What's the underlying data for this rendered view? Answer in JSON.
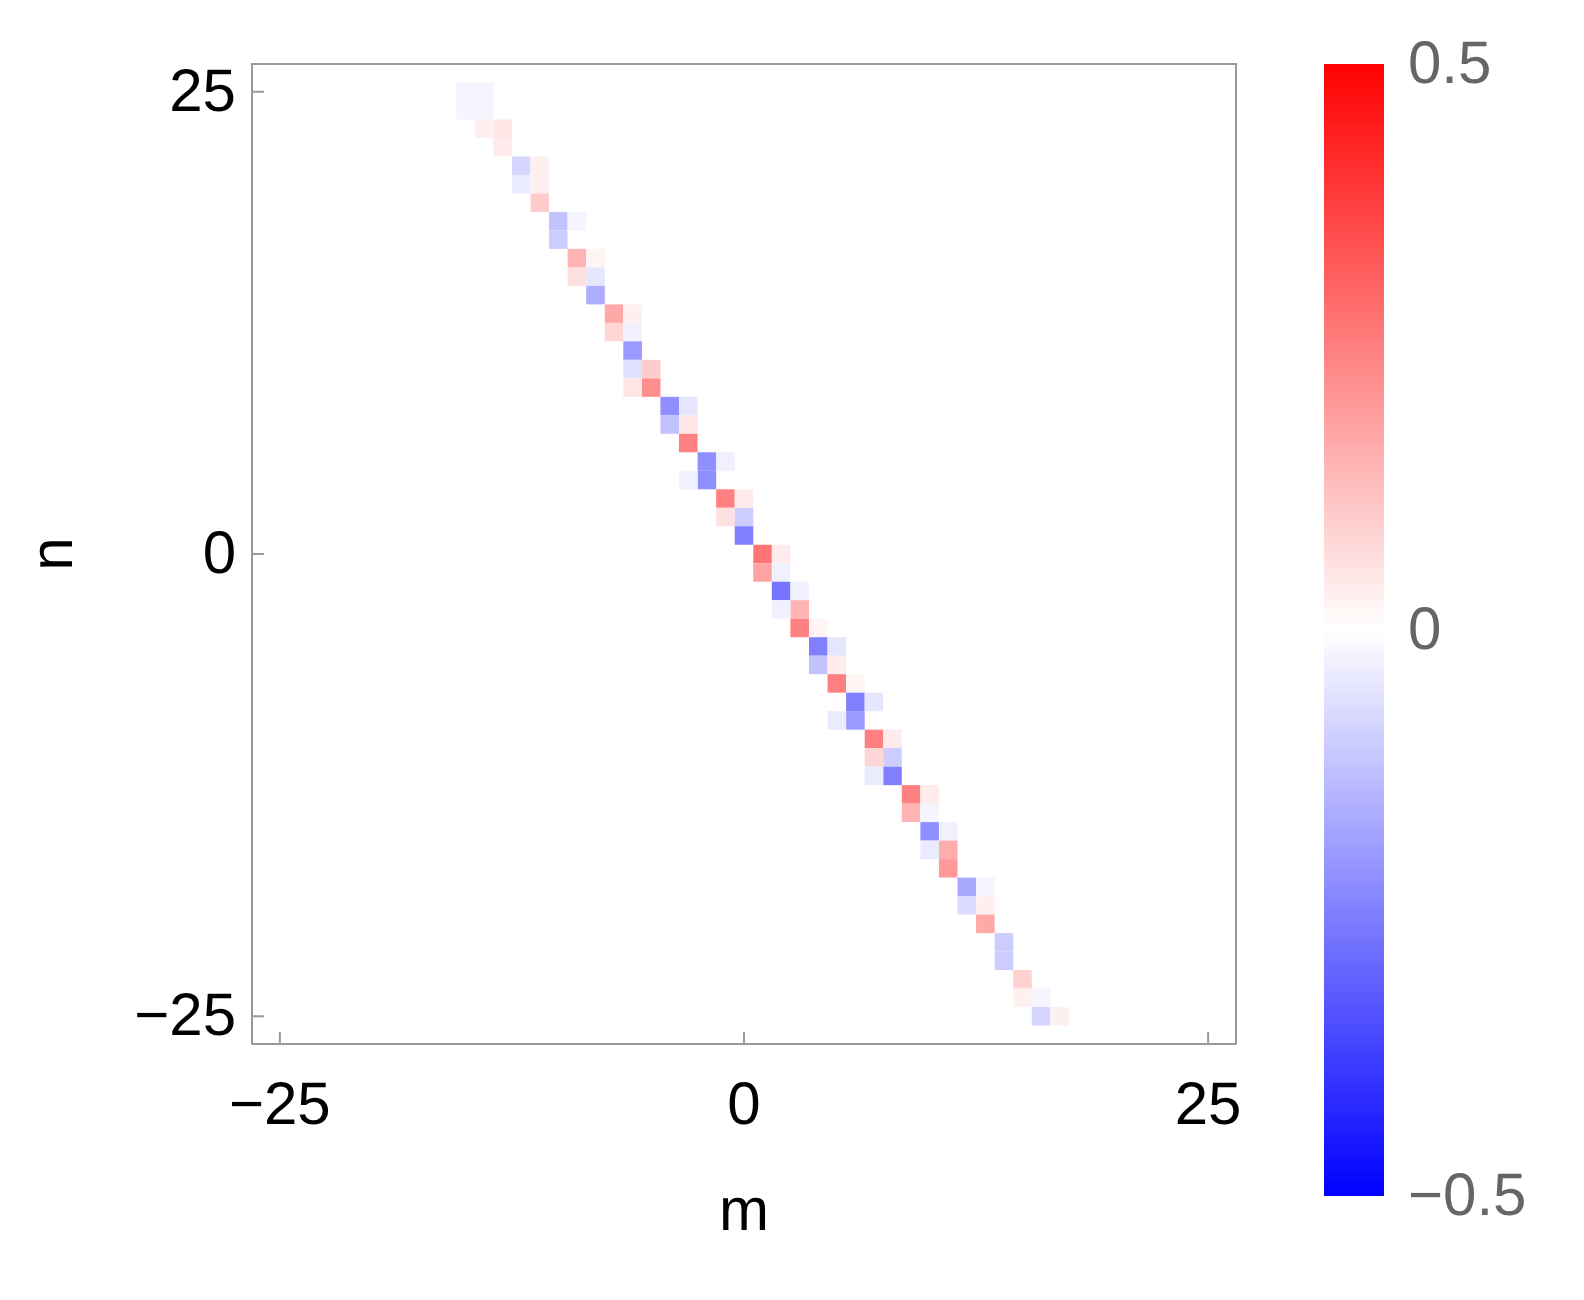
{
  "chart_data": {
    "type": "scatter",
    "xlabel": "m",
    "ylabel": "n",
    "marker": "square",
    "xlim": [
      -26.5,
      26.5
    ],
    "xticks": [
      {
        "value": -25,
        "label": "−25"
      },
      0,
      25
    ],
    "ylim": [
      -26.5,
      26.5
    ],
    "yticks": [
      {
        "value": -25,
        "label": "−25"
      },
      0,
      25
    ],
    "clim": [
      -0.5,
      0.5
    ],
    "cticks": [
      {
        "value": -0.5,
        "label": "−0.5"
      },
      0,
      0.5
    ],
    "x": [
      -15,
      -14,
      -15,
      -14,
      -13,
      -14,
      -13,
      -12,
      -11,
      -12,
      -11,
      -11,
      -10,
      -9,
      -10,
      -9,
      -8,
      -9,
      -8,
      -8,
      -7,
      -6,
      -7,
      -6,
      -6,
      -6,
      -5,
      -5,
      -6,
      -4,
      -3,
      -4,
      -3,
      -3,
      -2,
      -1,
      -2,
      -3,
      -1,
      0,
      -1,
      0,
      0,
      1,
      2,
      1,
      2,
      2,
      3,
      3,
      2,
      3,
      4,
      4,
      5,
      4,
      5,
      5,
      6,
      6,
      7,
      6,
      5,
      7,
      8,
      7,
      8,
      8,
      7,
      9,
      10,
      9,
      10,
      10,
      11,
      11,
      10,
      11,
      12,
      13,
      12,
      13,
      13,
      14,
      14,
      15,
      15,
      16,
      16,
      17
    ],
    "values": [
      25,
      25,
      24,
      24,
      23,
      23,
      22,
      21,
      21,
      20,
      20,
      19,
      18,
      18,
      17,
      16,
      16,
      15,
      15,
      14,
      13,
      13,
      12,
      12,
      11,
      10,
      10,
      9,
      9,
      8,
      8,
      7,
      7,
      6,
      5,
      5,
      4,
      4,
      3,
      3,
      2,
      2,
      1,
      0,
      0,
      -1,
      -1,
      -2,
      -2,
      -3,
      -3,
      -4,
      -4,
      -5,
      -5,
      -6,
      -6,
      -7,
      -7,
      -8,
      -8,
      -9,
      -9,
      -10,
      -10,
      -11,
      -11,
      -12,
      -12,
      -13,
      -13,
      -14,
      -14,
      -15,
      -15,
      -16,
      -16,
      -17,
      -18,
      -18,
      -19,
      -19,
      -20,
      -21,
      -22,
      -23,
      -24,
      -24,
      -25,
      -25
    ],
    "cvalues": [
      -0.02,
      -0.02,
      -0.02,
      -0.02,
      0.05,
      0.03,
      0.04,
      -0.08,
      0.03,
      -0.04,
      0.03,
      0.1,
      -0.12,
      -0.02,
      -0.1,
      0.15,
      0.02,
      0.06,
      -0.05,
      -0.16,
      0.17,
      0.03,
      0.08,
      -0.03,
      -0.2,
      -0.06,
      0.1,
      0.22,
      0.05,
      -0.22,
      -0.05,
      -0.12,
      0.05,
      0.25,
      -0.22,
      -0.03,
      -0.22,
      -0.03,
      0.25,
      0.04,
      0.06,
      -0.1,
      -0.25,
      0.27,
      0.04,
      0.18,
      -0.03,
      -0.27,
      -0.03,
      0.15,
      -0.03,
      0.25,
      0.02,
      -0.25,
      -0.05,
      -0.12,
      0.04,
      0.25,
      0.02,
      -0.25,
      -0.05,
      -0.2,
      -0.04,
      0.25,
      0.04,
      0.08,
      -0.1,
      -0.25,
      -0.04,
      0.25,
      0.04,
      0.15,
      -0.02,
      -0.22,
      -0.03,
      0.16,
      -0.04,
      0.2,
      -0.17,
      -0.02,
      -0.07,
      0.03,
      0.17,
      -0.1,
      -0.1,
      0.09,
      0.03,
      -0.02,
      -0.08,
      0.03
    ]
  }
}
